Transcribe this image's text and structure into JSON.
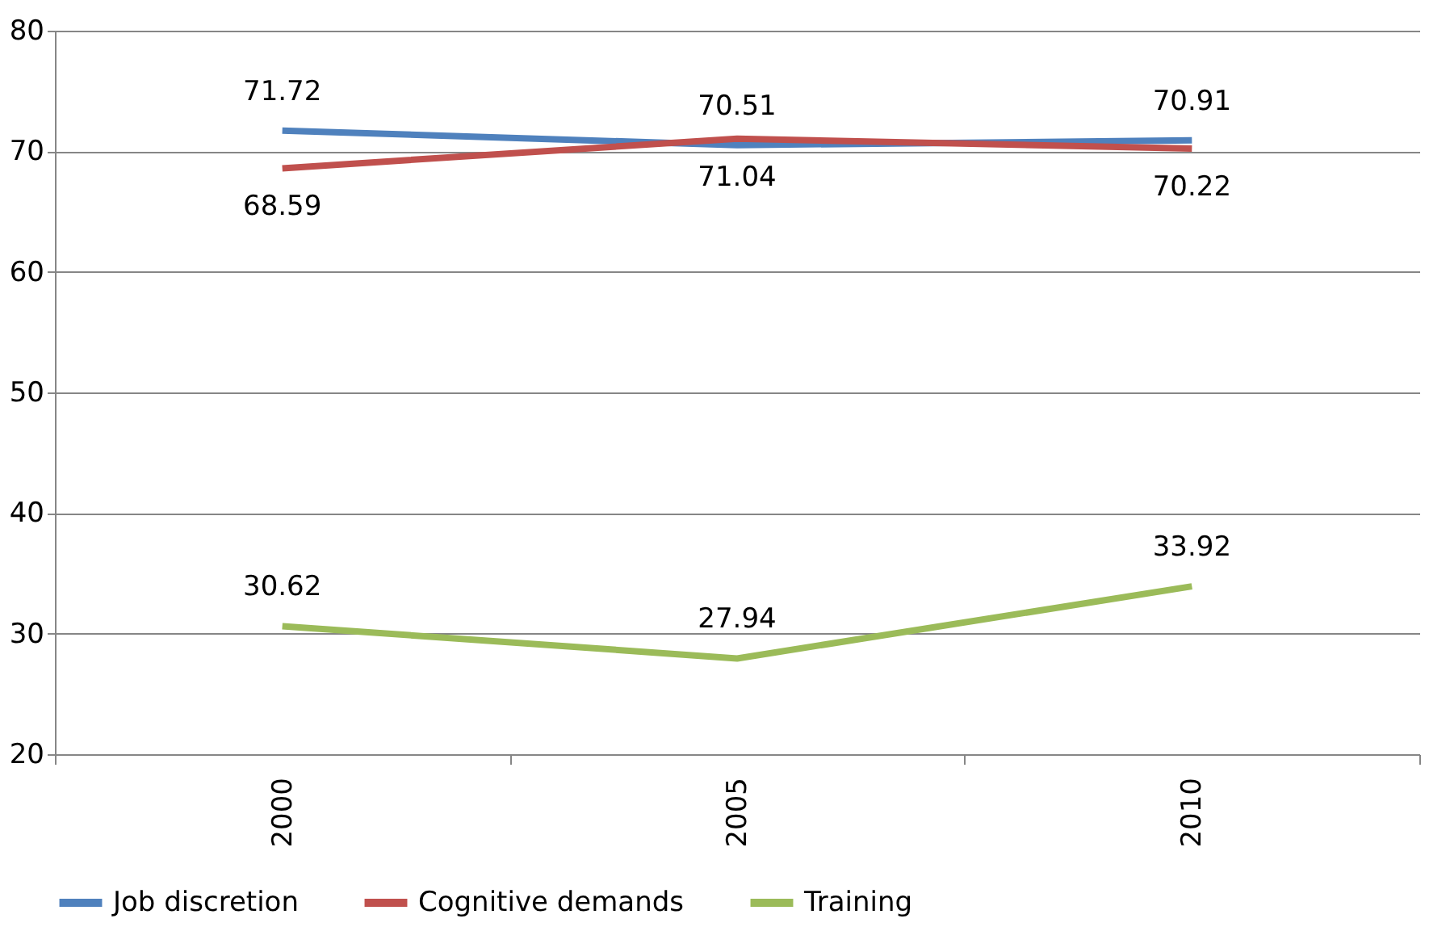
{
  "chart_data": {
    "type": "line",
    "categories": [
      "2000",
      "2005",
      "2010"
    ],
    "series": [
      {
        "name": "Job discretion",
        "color": "#4f81bd",
        "values": [
          71.72,
          70.51,
          70.91
        ]
      },
      {
        "name": "Cognitive demands",
        "color": "#c0504d",
        "values": [
          68.59,
          71.04,
          70.22
        ]
      },
      {
        "name": "Training",
        "color": "#9bbb59",
        "values": [
          30.62,
          27.94,
          33.92
        ]
      }
    ],
    "ylim": [
      20,
      80
    ],
    "yticks": [
      20,
      30,
      40,
      50,
      60,
      70,
      80
    ],
    "grid": "y",
    "legend": "bottom",
    "data_labels": true,
    "marker": "none",
    "line_style": "solid"
  }
}
